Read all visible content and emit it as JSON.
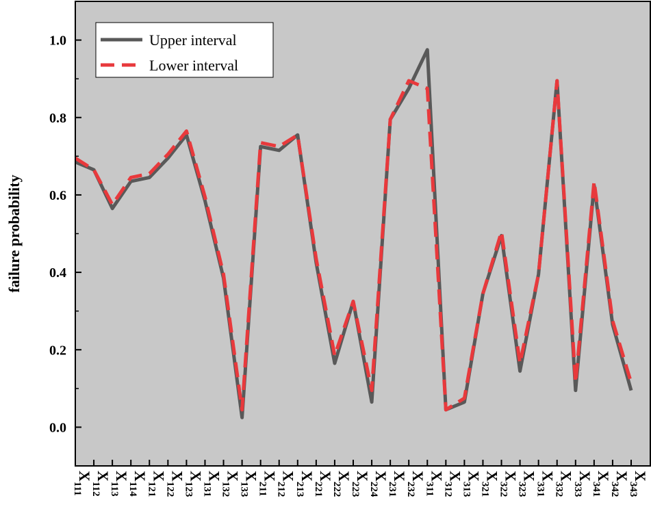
{
  "chart_data": {
    "type": "line",
    "ylabel": "failure probability",
    "xlabel": "",
    "ylim": [
      -0.1,
      1.1
    ],
    "yticks": [
      "0.0",
      "0.2",
      "0.4",
      "0.6",
      "0.8",
      "1.0"
    ],
    "grid": false,
    "legend_position": "top-left",
    "background_color": "#c8c8c8",
    "categories": [
      {
        "main": "X",
        "sub": "111"
      },
      {
        "main": "X",
        "sub": "112"
      },
      {
        "main": "X",
        "sub": "113"
      },
      {
        "main": "X",
        "sub": "114"
      },
      {
        "main": "X",
        "sub": "121"
      },
      {
        "main": "X",
        "sub": "122"
      },
      {
        "main": "X",
        "sub": "123"
      },
      {
        "main": "X",
        "sub": "131"
      },
      {
        "main": "X",
        "sub": "132"
      },
      {
        "main": "X",
        "sub": "133"
      },
      {
        "main": "X",
        "sub": "211"
      },
      {
        "main": "X",
        "sub": "212"
      },
      {
        "main": "X",
        "sub": "213"
      },
      {
        "main": "X",
        "sub": "221"
      },
      {
        "main": "X",
        "sub": "222"
      },
      {
        "main": "X",
        "sub": "223"
      },
      {
        "main": "X",
        "sub": "224"
      },
      {
        "main": "X",
        "sub": "231"
      },
      {
        "main": "X",
        "sub": "232"
      },
      {
        "main": "X",
        "sub": "311"
      },
      {
        "main": "X",
        "sub": "312"
      },
      {
        "main": "X",
        "sub": "313"
      },
      {
        "main": "X",
        "sub": "321"
      },
      {
        "main": "X",
        "sub": "322"
      },
      {
        "main": "X",
        "sub": "323"
      },
      {
        "main": "X",
        "sub": "331"
      },
      {
        "main": "X",
        "sub": "332"
      },
      {
        "main": "X",
        "sub": "333"
      },
      {
        "main": "X",
        "sub": "341"
      },
      {
        "main": "X",
        "sub": "342"
      },
      {
        "main": "X",
        "sub": "343"
      }
    ],
    "series": [
      {
        "name": "Upper interval",
        "color": "#595959",
        "style": "solid",
        "values": [
          0.685,
          0.665,
          0.565,
          0.635,
          0.645,
          0.695,
          0.755,
          0.585,
          0.385,
          0.025,
          0.725,
          0.715,
          0.755,
          0.425,
          0.165,
          0.325,
          0.065,
          0.795,
          0.875,
          0.975,
          0.045,
          0.065,
          0.345,
          0.495,
          0.145,
          0.395,
          0.895,
          0.095,
          0.625,
          0.265,
          0.095
        ]
      },
      {
        "name": "Lower interval",
        "color": "#e8393c",
        "style": "dashed",
        "values": [
          0.695,
          0.665,
          0.575,
          0.645,
          0.655,
          0.705,
          0.765,
          0.595,
          0.395,
          0.045,
          0.735,
          0.725,
          0.755,
          0.435,
          0.185,
          0.325,
          0.095,
          0.795,
          0.895,
          0.875,
          0.045,
          0.075,
          0.345,
          0.505,
          0.165,
          0.395,
          0.895,
          0.115,
          0.635,
          0.275,
          0.115
        ]
      }
    ]
  }
}
